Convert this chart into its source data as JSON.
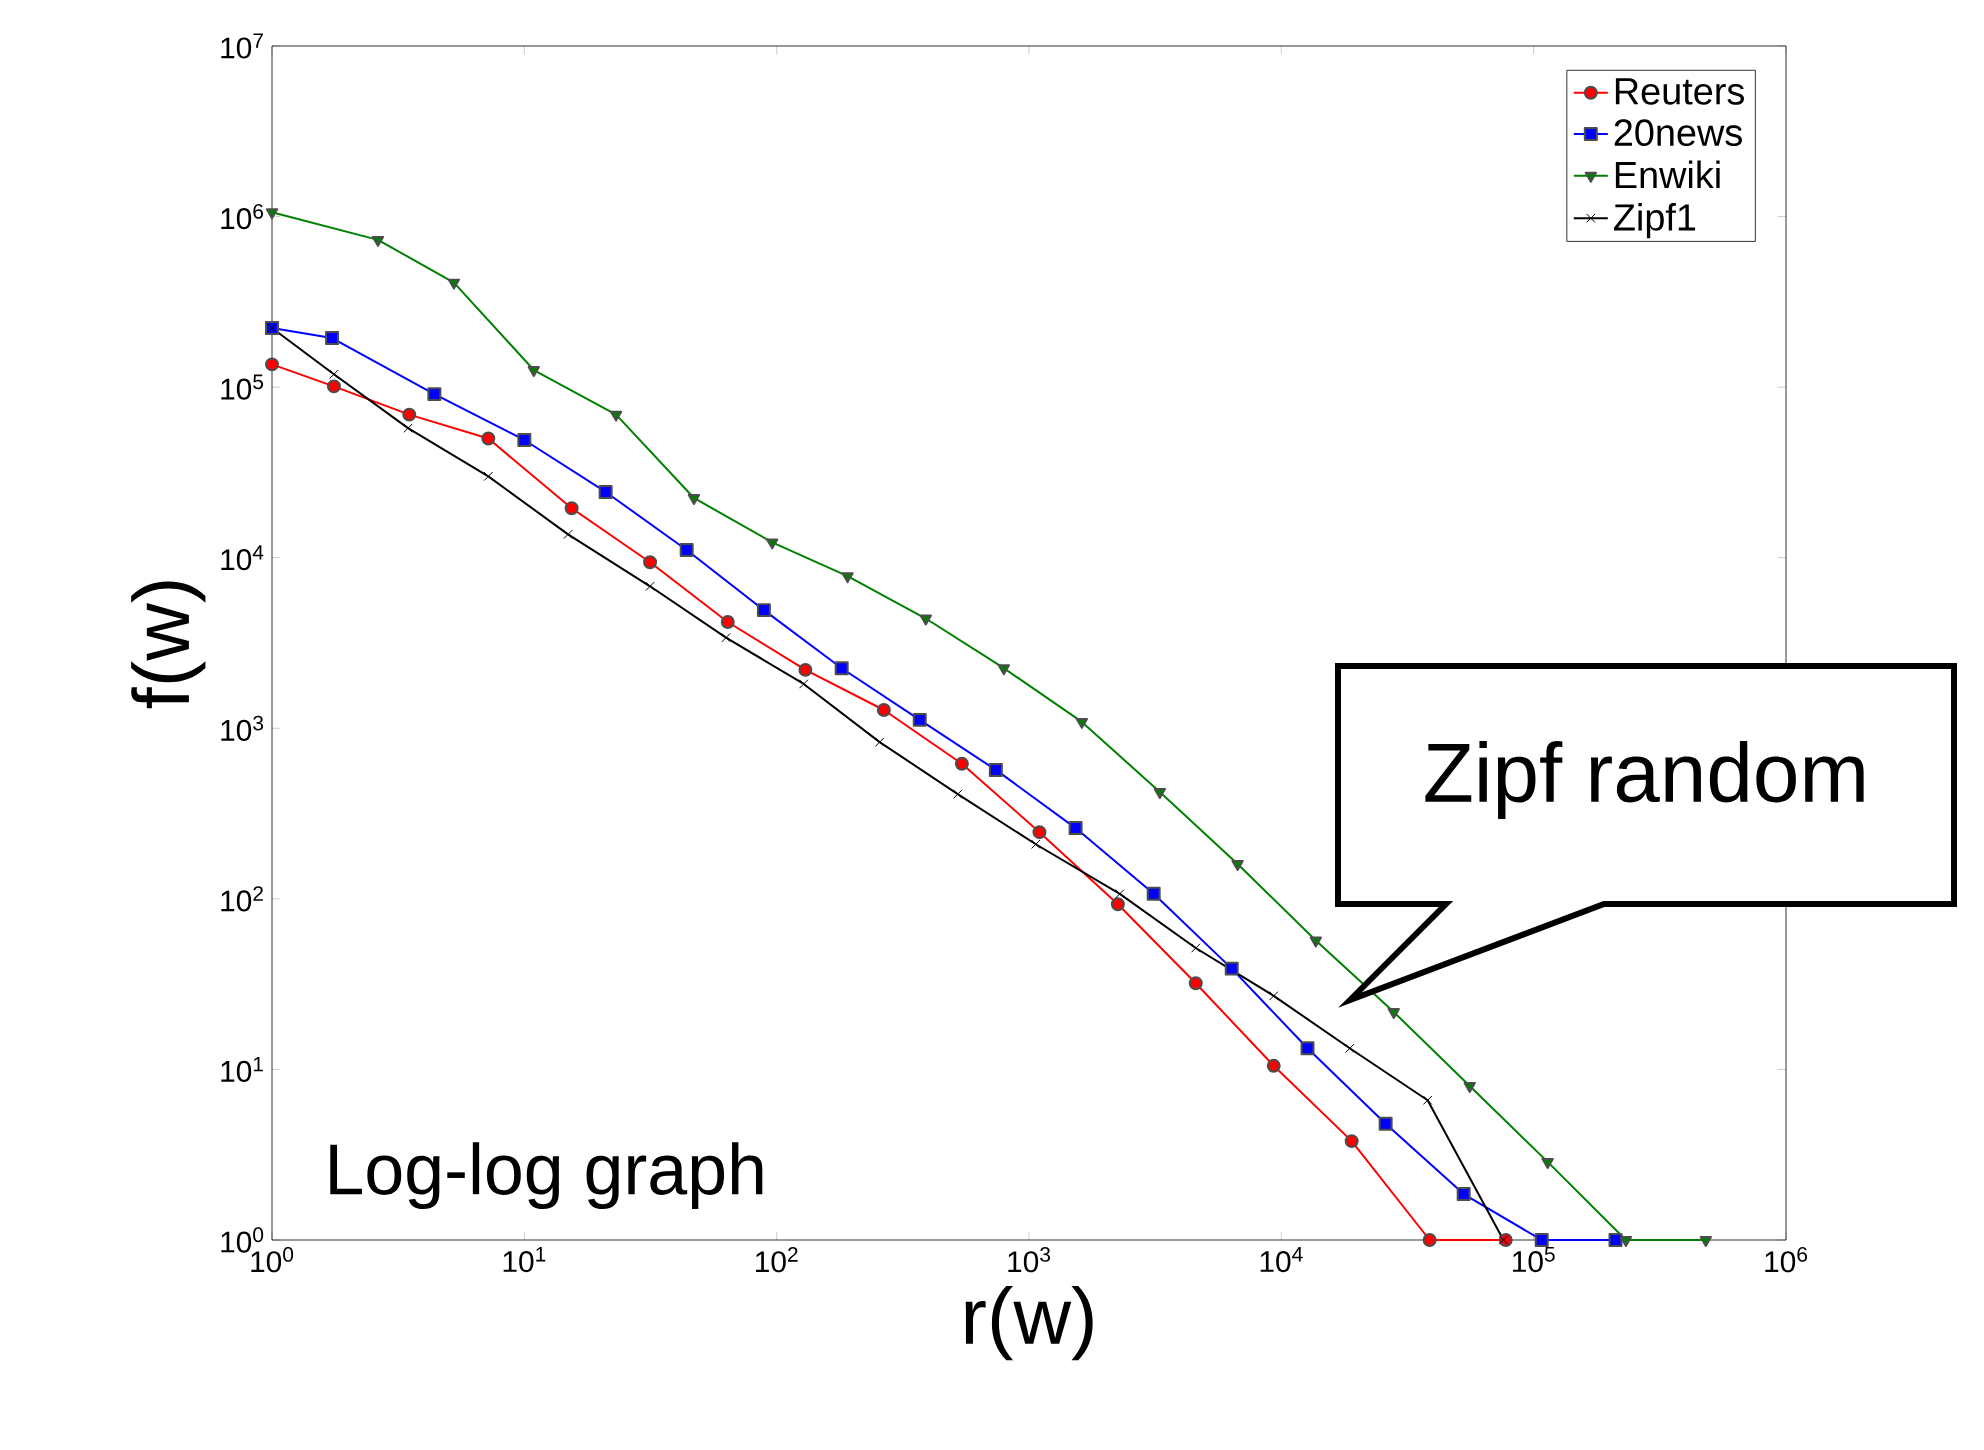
{
  "chart_data": {
    "type": "line",
    "xlabel": "r(w)",
    "ylabel": "f(w)",
    "log": "xy",
    "legend": "top right",
    "xlim": [
      1,
      1000000
    ],
    "ylim": [
      1,
      10000000
    ],
    "xticks": [
      {
        "value": 1,
        "label": "10$^{0}$"
      },
      {
        "value": 10,
        "label": "10$^{1}$"
      },
      {
        "value": 100,
        "label": "10$^{2}$"
      },
      {
        "value": 1000,
        "label": "10$^{3}$"
      },
      {
        "value": 10000,
        "label": "10$^{4}$"
      },
      {
        "value": 100000,
        "label": "10$^{5}$"
      },
      {
        "value": 1000000,
        "label": "10$^{6}$"
      }
    ],
    "yticks": [
      {
        "value": 1,
        "label": "10$^{0}$"
      },
      {
        "value": 10,
        "label": "10$^{1}$"
      },
      {
        "value": 100,
        "label": "10$^{2}$"
      },
      {
        "value": 1000,
        "label": "10$^{3}$"
      },
      {
        "value": 10000,
        "label": "10$^{4}$"
      },
      {
        "value": 100000,
        "label": "10$^{5}$"
      },
      {
        "value": 1000000,
        "label": "10$^{6}$"
      },
      {
        "value": 10000000,
        "label": "10$^{7}$"
      }
    ],
    "series": [
      {
        "name": "Reuters",
        "color": "#ff0000",
        "marker": "circle",
        "x": [
          1,
          1.76,
          3.5,
          7.2,
          15.4,
          31.5,
          64,
          130,
          266,
          542,
          1100,
          2250,
          4580,
          9330,
          19000,
          38700,
          77500
        ],
        "values": [
          136000,
          101000,
          69000,
          50000,
          19500,
          9400,
          4200,
          2200,
          1280,
          620,
          246,
          93,
          32,
          10.5,
          3.8,
          1,
          1
        ]
      },
      {
        "name": "20news",
        "color": "#0000ff",
        "marker": "square",
        "x": [
          1,
          1.73,
          4.4,
          10,
          21,
          44,
          89,
          181,
          369,
          739,
          1530,
          3120,
          6360,
          12700,
          25900,
          52800,
          107600,
          211000
        ],
        "values": [
          222000,
          194000,
          91000,
          49000,
          24300,
          11100,
          4930,
          2250,
          1120,
          570,
          260,
          107,
          39,
          13.3,
          4.8,
          1.86,
          1,
          1
        ]
      },
      {
        "name": "Enwiki",
        "color": "#008000",
        "marker": "triangle",
        "x": [
          1,
          2.63,
          5.26,
          10.9,
          23.1,
          47,
          96,
          191,
          390,
          795,
          1620,
          3300,
          6710,
          13700,
          27900,
          55800,
          113600,
          232000,
          481000
        ],
        "values": [
          1060000,
          730000,
          410000,
          126000,
          69000,
          22400,
          12300,
          7800,
          4400,
          2250,
          1090,
          423,
          160,
          57,
          21.7,
          8,
          2.87,
          1,
          1
        ]
      },
      {
        "name": "Zipf1",
        "color": "#000000",
        "marker": "cross",
        "x": [
          1,
          1.76,
          3.46,
          7.2,
          14.9,
          31.5,
          63,
          128,
          256,
          522,
          1064,
          2290,
          4580,
          9330,
          18670,
          38000,
          75900
        ],
        "values": [
          222000,
          119000,
          57500,
          30000,
          13700,
          6800,
          3400,
          1820,
          830,
          411,
          209,
          107,
          51.5,
          27,
          13.3,
          6.6,
          1
        ]
      }
    ],
    "annotations": [
      "Zipf random",
      "Log-log graph"
    ]
  }
}
